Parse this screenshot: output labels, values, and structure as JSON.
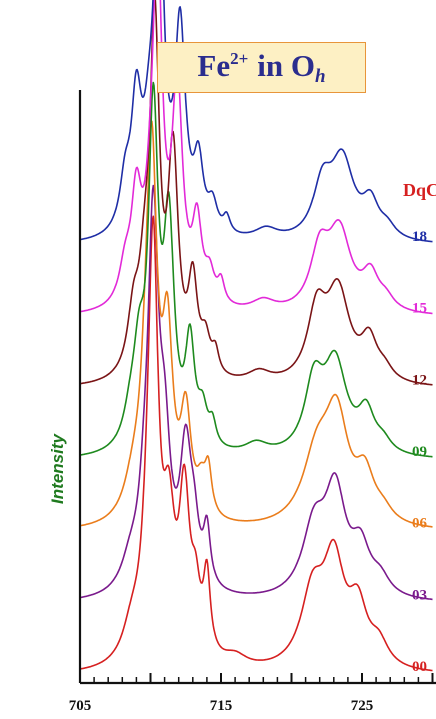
{
  "title": {
    "base": "Fe",
    "charge": "2+",
    "in_text": "in O",
    "subscript": "h",
    "border_color": "#e8953a",
    "fill_color": "#fdf0c4",
    "text_color": "#2b2d8e"
  },
  "chart_data": {
    "type": "line",
    "title": "Fe2+ in Oh",
    "xlabel": "",
    "ylabel": "Intensity",
    "xlim": [
      705,
      730
    ],
    "x_ticks": [
      705,
      715,
      725
    ],
    "legend_title": "DqC",
    "y_axis_numbers": false,
    "grid": false,
    "peak_units": "arbitrary intensity (0-1 scaled)",
    "series": [
      {
        "name": "00",
        "color": "#d62020",
        "baseline": 0.0,
        "peaks": [
          [
            708.7,
            0.06,
            0.8
          ],
          [
            709.8,
            0.12,
            0.5
          ],
          [
            710.2,
            0.68,
            0.42
          ],
          [
            711.3,
            0.22,
            0.5
          ],
          [
            712.4,
            0.28,
            0.45
          ],
          [
            713.2,
            0.1,
            0.4
          ],
          [
            714.0,
            0.14,
            0.3
          ],
          [
            716.0,
            0.02,
            1.0
          ],
          [
            721.5,
            0.13,
            1.0
          ],
          [
            723.0,
            0.18,
            0.9
          ],
          [
            724.7,
            0.1,
            0.8
          ],
          [
            726.2,
            0.04,
            0.8
          ]
        ]
      },
      {
        "name": "03",
        "color": "#7a1a8c",
        "baseline": 0.128,
        "peaks": [
          [
            708.6,
            0.05,
            0.8
          ],
          [
            709.6,
            0.1,
            0.5
          ],
          [
            710.2,
            0.62,
            0.45
          ],
          [
            711.0,
            0.22,
            0.5
          ],
          [
            712.5,
            0.24,
            0.5
          ],
          [
            713.1,
            0.08,
            0.4
          ],
          [
            714.0,
            0.1,
            0.3
          ],
          [
            721.6,
            0.12,
            1.0
          ],
          [
            723.1,
            0.18,
            0.9
          ],
          [
            724.9,
            0.08,
            0.8
          ],
          [
            726.3,
            0.03,
            0.8
          ]
        ]
      },
      {
        "name": "06",
        "color": "#ea7d1c",
        "baseline": 0.256,
        "peaks": [
          [
            708.8,
            0.06,
            0.8
          ],
          [
            709.7,
            0.14,
            0.5
          ],
          [
            710.1,
            0.58,
            0.45
          ],
          [
            711.2,
            0.3,
            0.45
          ],
          [
            712.5,
            0.18,
            0.45
          ],
          [
            713.6,
            0.05,
            0.4
          ],
          [
            714.1,
            0.08,
            0.3
          ],
          [
            721.8,
            0.12,
            1.2
          ],
          [
            723.2,
            0.18,
            1.0
          ],
          [
            725.2,
            0.08,
            0.8
          ],
          [
            726.5,
            0.02,
            0.8
          ]
        ]
      },
      {
        "name": "09",
        "color": "#1e8a1e",
        "baseline": 0.384,
        "peaks": [
          [
            708.6,
            0.05,
            0.6
          ],
          [
            709.2,
            0.14,
            0.5
          ],
          [
            710.2,
            0.58,
            0.42
          ],
          [
            711.3,
            0.38,
            0.45
          ],
          [
            712.8,
            0.18,
            0.4
          ],
          [
            713.7,
            0.06,
            0.4
          ],
          [
            714.4,
            0.04,
            0.3
          ],
          [
            717.5,
            0.02,
            1.0
          ],
          [
            721.6,
            0.12,
            0.8
          ],
          [
            723.1,
            0.16,
            1.0
          ],
          [
            725.3,
            0.07,
            0.7
          ],
          [
            726.5,
            0.02,
            0.7
          ]
        ]
      },
      {
        "name": "12",
        "color": "#7a1416",
        "baseline": 0.512,
        "peaks": [
          [
            708.8,
            0.1,
            0.5
          ],
          [
            709.6,
            0.14,
            0.5
          ],
          [
            710.3,
            0.6,
            0.4
          ],
          [
            711.6,
            0.38,
            0.45
          ],
          [
            713.0,
            0.16,
            0.4
          ],
          [
            713.9,
            0.06,
            0.4
          ],
          [
            714.6,
            0.04,
            0.3
          ],
          [
            717.7,
            0.02,
            1.0
          ],
          [
            721.8,
            0.12,
            0.8
          ],
          [
            723.3,
            0.16,
            1.0
          ],
          [
            725.5,
            0.07,
            0.7
          ],
          [
            726.6,
            0.02,
            0.7
          ]
        ]
      },
      {
        "name": "15",
        "color": "#e22ad8",
        "baseline": 0.64,
        "peaks": [
          [
            708.2,
            0.06,
            0.5
          ],
          [
            709.0,
            0.18,
            0.45
          ],
          [
            710.0,
            0.1,
            0.5
          ],
          [
            710.5,
            0.58,
            0.4
          ],
          [
            711.9,
            0.38,
            0.45
          ],
          [
            713.3,
            0.14,
            0.4
          ],
          [
            714.2,
            0.05,
            0.4
          ],
          [
            715.0,
            0.04,
            0.3
          ],
          [
            718.0,
            0.02,
            1.0
          ],
          [
            722.0,
            0.1,
            0.8
          ],
          [
            723.4,
            0.14,
            1.0
          ],
          [
            725.6,
            0.06,
            0.7
          ],
          [
            726.7,
            0.02,
            0.7
          ]
        ]
      },
      {
        "name": "18",
        "color": "#1f2ea6",
        "baseline": 0.768,
        "peaks": [
          [
            708.2,
            0.08,
            0.45
          ],
          [
            709.0,
            0.22,
            0.45
          ],
          [
            709.9,
            0.12,
            0.5
          ],
          [
            710.6,
            0.62,
            0.4
          ],
          [
            712.1,
            0.36,
            0.45
          ],
          [
            713.4,
            0.12,
            0.4
          ],
          [
            714.4,
            0.05,
            0.4
          ],
          [
            715.4,
            0.03,
            0.3
          ],
          [
            718.2,
            0.02,
            1.0
          ],
          [
            722.2,
            0.09,
            0.8
          ],
          [
            723.6,
            0.14,
            1.0
          ],
          [
            725.6,
            0.06,
            0.7
          ],
          [
            726.8,
            0.02,
            0.7
          ]
        ]
      }
    ]
  }
}
